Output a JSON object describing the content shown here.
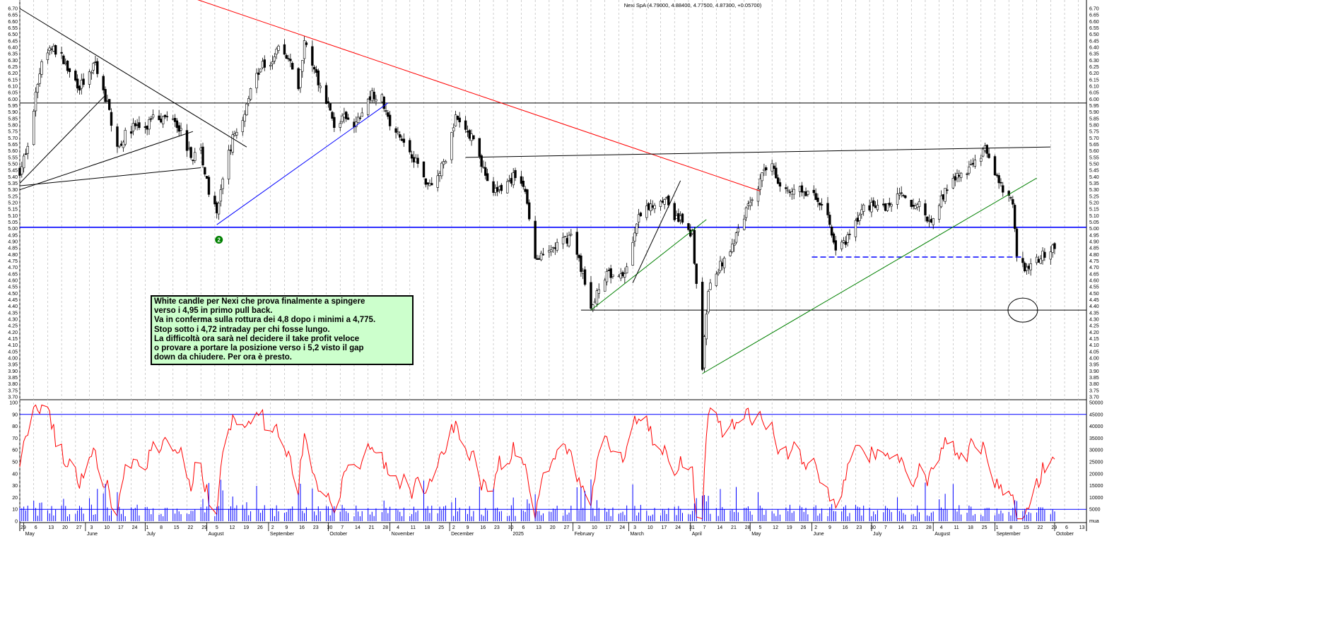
{
  "chart_data": {
    "type": "candlestick",
    "title": "Nexi SpA (4.79000, 4.88400, 4.77500, 4.87300, +0.05700)",
    "instrument": "Nexi SpA",
    "last_quote": {
      "open": 4.79,
      "high": 4.884,
      "low": 4.775,
      "close": 4.873,
      "change": 0.057
    },
    "price_axis": {
      "min": 3.7,
      "max": 6.7,
      "step": 0.05
    },
    "oscillator_axis": {
      "min": 0,
      "max": 100,
      "ticks": [
        0,
        10,
        20,
        30,
        40,
        50,
        60,
        70,
        80,
        90,
        100
      ]
    },
    "volume_axis": {
      "min": 0,
      "max": 50000,
      "ticks": [
        5000,
        10000,
        15000,
        20000,
        25000,
        30000,
        35000,
        40000,
        45000,
        50000
      ],
      "unit_label": "mua"
    },
    "oscillator_levels": [
      10,
      90
    ],
    "horizontal_levels": [
      {
        "price": 5.97,
        "color": "#000000",
        "style": "solid"
      },
      {
        "price": 5.01,
        "color": "#0000ff",
        "style": "solid"
      },
      {
        "price": 4.37,
        "color": "#000000",
        "style": "solid",
        "from": "2025-02-05"
      },
      {
        "price": 4.78,
        "color": "#0000ff",
        "style": "dashed",
        "from": "2025-06-01"
      }
    ],
    "trendlines": [
      {
        "color": "#000000",
        "from": [
          "2024-04-29",
          6.7
        ],
        "to": [
          "2024-08-21",
          5.63
        ]
      },
      {
        "color": "#000000",
        "from": [
          "2024-04-29",
          5.35
        ],
        "to": [
          "2024-06-11",
          6.03
        ]
      },
      {
        "color": "#000000",
        "from": [
          "2024-04-29",
          5.3
        ],
        "to": [
          "2024-07-25",
          5.75
        ]
      },
      {
        "color": "#000000",
        "from": [
          "2024-04-29",
          5.33
        ],
        "to": [
          "2024-07-29",
          5.47
        ]
      },
      {
        "color": "#ff0000",
        "from": [
          "2024-07-25",
          6.78
        ],
        "to": [
          "2025-05-06",
          5.29
        ]
      },
      {
        "color": "#0000ff",
        "from": [
          "2024-08-06",
          5.03
        ],
        "to": [
          "2024-10-31",
          5.97
        ]
      },
      {
        "color": "#000000",
        "from": [
          "2024-12-09",
          5.55
        ],
        "to": [
          "2025-09-29",
          5.63
        ]
      },
      {
        "color": "#008000",
        "from": [
          "2025-02-10",
          4.37
        ],
        "to": [
          "2025-04-09",
          5.07
        ]
      },
      {
        "color": "#000000",
        "from": [
          "2025-03-03",
          4.58
        ],
        "to": [
          "2025-03-27",
          5.37
        ]
      },
      {
        "color": "#008000",
        "from": [
          "2025-04-07",
          3.88
        ],
        "to": [
          "2025-09-22",
          5.39
        ]
      }
    ],
    "annotations": [
      {
        "type": "ellipse",
        "date": "2025-09-15",
        "price": 4.37
      },
      {
        "type": "badge",
        "text": "2",
        "date": "2024-08-06",
        "price": 4.99
      }
    ],
    "x_month_labels": [
      {
        "date": "2024-05-01",
        "label": "May"
      },
      {
        "date": "2024-06-01",
        "label": "June"
      },
      {
        "date": "2024-07-01",
        "label": "July"
      },
      {
        "date": "2024-08-01",
        "label": "August"
      },
      {
        "date": "2024-09-01",
        "label": "September"
      },
      {
        "date": "2024-10-01",
        "label": "October"
      },
      {
        "date": "2024-11-01",
        "label": "November"
      },
      {
        "date": "2024-12-01",
        "label": "December"
      },
      {
        "date": "2025-01-01",
        "label": "2025"
      },
      {
        "date": "2025-02-01",
        "label": "February"
      },
      {
        "date": "2025-03-01",
        "label": "March"
      },
      {
        "date": "2025-04-01",
        "label": "April"
      },
      {
        "date": "2025-05-01",
        "label": "May"
      },
      {
        "date": "2025-06-01",
        "label": "June"
      },
      {
        "date": "2025-07-01",
        "label": "July"
      },
      {
        "date": "2025-08-01",
        "label": "August"
      },
      {
        "date": "2025-09-01",
        "label": "September"
      },
      {
        "date": "2025-10-01",
        "label": "October"
      }
    ],
    "x_range": [
      "2024-04-29",
      "2025-10-17"
    ],
    "price_path": [
      [
        "2024-04-29",
        5.45
      ],
      [
        "2024-05-03",
        5.62
      ],
      [
        "2024-05-07",
        6.02
      ],
      [
        "2024-05-10",
        6.3
      ],
      [
        "2024-05-15",
        6.4
      ],
      [
        "2024-05-20",
        6.32
      ],
      [
        "2024-05-24",
        6.2
      ],
      [
        "2024-05-29",
        6.1
      ],
      [
        "2024-06-03",
        6.18
      ],
      [
        "2024-06-06",
        6.28
      ],
      [
        "2024-06-10",
        6.05
      ],
      [
        "2024-06-13",
        5.9
      ],
      [
        "2024-06-17",
        5.62
      ],
      [
        "2024-06-21",
        5.72
      ],
      [
        "2024-06-26",
        5.8
      ],
      [
        "2024-07-01",
        5.75
      ],
      [
        "2024-07-05",
        5.9
      ],
      [
        "2024-07-10",
        5.85
      ],
      [
        "2024-07-15",
        5.88
      ],
      [
        "2024-07-19",
        5.75
      ],
      [
        "2024-07-24",
        5.55
      ],
      [
        "2024-07-29",
        5.6
      ],
      [
        "2024-08-02",
        5.3
      ],
      [
        "2024-08-06",
        5.1
      ],
      [
        "2024-08-09",
        5.4
      ],
      [
        "2024-08-14",
        5.7
      ],
      [
        "2024-08-19",
        5.85
      ],
      [
        "2024-08-23",
        6.1
      ],
      [
        "2024-08-28",
        6.25
      ],
      [
        "2024-09-02",
        6.3
      ],
      [
        "2024-09-06",
        6.4
      ],
      [
        "2024-09-11",
        6.3
      ],
      [
        "2024-09-16",
        6.1
      ],
      [
        "2024-09-19",
        6.45
      ],
      [
        "2024-09-24",
        6.2
      ],
      [
        "2024-09-30",
        6.0
      ],
      [
        "2024-10-04",
        5.8
      ],
      [
        "2024-10-09",
        5.85
      ],
      [
        "2024-10-14",
        5.78
      ],
      [
        "2024-10-18",
        5.9
      ],
      [
        "2024-10-23",
        6.05
      ],
      [
        "2024-10-28",
        6.0
      ],
      [
        "2024-11-01",
        5.8
      ],
      [
        "2024-11-06",
        5.7
      ],
      [
        "2024-11-11",
        5.6
      ],
      [
        "2024-11-15",
        5.5
      ],
      [
        "2024-11-20",
        5.35
      ],
      [
        "2024-11-25",
        5.4
      ],
      [
        "2024-11-29",
        5.55
      ],
      [
        "2024-12-04",
        5.85
      ],
      [
        "2024-12-09",
        5.75
      ],
      [
        "2024-12-13",
        5.7
      ],
      [
        "2024-12-18",
        5.45
      ],
      [
        "2024-12-23",
        5.28
      ],
      [
        "2024-12-30",
        5.35
      ],
      [
        "2025-01-03",
        5.42
      ],
      [
        "2025-01-08",
        5.3
      ],
      [
        "2025-01-13",
        4.75
      ],
      [
        "2025-01-17",
        4.78
      ],
      [
        "2025-01-22",
        4.85
      ],
      [
        "2025-01-27",
        4.9
      ],
      [
        "2025-01-31",
        4.95
      ],
      [
        "2025-02-05",
        4.7
      ],
      [
        "2025-02-10",
        4.4
      ],
      [
        "2025-02-14",
        4.55
      ],
      [
        "2025-02-19",
        4.65
      ],
      [
        "2025-02-24",
        4.6
      ],
      [
        "2025-02-28",
        4.7
      ],
      [
        "2025-03-05",
        5.05
      ],
      [
        "2025-03-10",
        5.15
      ],
      [
        "2025-03-14",
        5.2
      ],
      [
        "2025-03-19",
        5.25
      ],
      [
        "2025-03-24",
        5.1
      ],
      [
        "2025-03-28",
        5.05
      ],
      [
        "2025-04-02",
        4.95
      ],
      [
        "2025-04-07",
        3.95
      ],
      [
        "2025-04-10",
        4.5
      ],
      [
        "2025-04-15",
        4.7
      ],
      [
        "2025-04-22",
        4.85
      ],
      [
        "2025-04-28",
        5.1
      ],
      [
        "2025-05-02",
        5.25
      ],
      [
        "2025-05-07",
        5.4
      ],
      [
        "2025-05-12",
        5.5
      ],
      [
        "2025-05-16",
        5.35
      ],
      [
        "2025-05-21",
        5.25
      ],
      [
        "2025-05-26",
        5.3
      ],
      [
        "2025-05-30",
        5.28
      ],
      [
        "2025-06-04",
        5.22
      ],
      [
        "2025-06-09",
        5.1
      ],
      [
        "2025-06-13",
        4.85
      ],
      [
        "2025-06-18",
        4.88
      ],
      [
        "2025-06-23",
        5.05
      ],
      [
        "2025-06-27",
        5.15
      ],
      [
        "2025-07-02",
        5.2
      ],
      [
        "2025-07-07",
        5.15
      ],
      [
        "2025-07-11",
        5.2
      ],
      [
        "2025-07-16",
        5.25
      ],
      [
        "2025-07-21",
        5.15
      ],
      [
        "2025-07-25",
        5.2
      ],
      [
        "2025-07-30",
        5.05
      ],
      [
        "2025-08-04",
        5.2
      ],
      [
        "2025-08-08",
        5.3
      ],
      [
        "2025-08-13",
        5.4
      ],
      [
        "2025-08-18",
        5.45
      ],
      [
        "2025-08-22",
        5.55
      ],
      [
        "2025-08-27",
        5.6
      ],
      [
        "2025-09-01",
        5.45
      ],
      [
        "2025-09-05",
        5.28
      ],
      [
        "2025-09-10",
        5.2
      ],
      [
        "2025-09-12",
        4.75
      ],
      [
        "2025-09-17",
        4.7
      ],
      [
        "2025-09-22",
        4.75
      ],
      [
        "2025-09-26",
        4.8
      ],
      [
        "2025-10-01",
        4.87
      ]
    ]
  },
  "note": {
    "lines": [
      "White candle per Nexi che prova finalmente a spingere",
      "verso i 4,95 in primo pull back.",
      "Va in conferma sulla rottura dei 4,8 dopo i minimi a 4,775.",
      "Stop sotto i 4,72 intraday per chi fosse lungo.",
      "La difficoltà ora sarà nel decidere il take profit veloce",
      "o provare a portare la posizione verso i 5,2 visto il gap",
      "down da chiudere. Per ora è presto."
    ]
  },
  "colors": {
    "background": "#ffffff",
    "grid": "#b0b0b0",
    "candle": "#000000",
    "oscillator": "#ff0000",
    "volume": "#0000ff",
    "note_bg": "#ccffcc",
    "badge": "#008000"
  }
}
